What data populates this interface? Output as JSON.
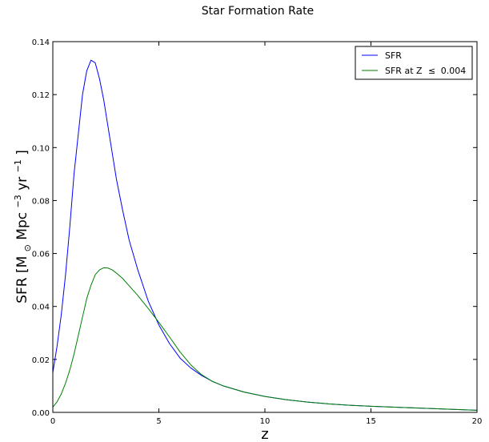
{
  "chart_data": {
    "type": "line",
    "title": "Star Formation Rate",
    "xlabel": "z",
    "ylabel": {
      "prefix": "SFR [M",
      "sun_subscript": "⊙",
      "mid": " Mpc",
      "mid_sup": "−3",
      "mid2": " yr",
      "end_sup": "−1",
      "suffix": " ]"
    },
    "xlim": [
      0,
      20
    ],
    "ylim": [
      0,
      0.14
    ],
    "xticks": [
      0,
      5,
      10,
      15,
      20
    ],
    "xtick_labels": [
      "0",
      "5",
      "10",
      "15",
      "20"
    ],
    "yticks": [
      0,
      0.02,
      0.04,
      0.06,
      0.08,
      0.1,
      0.12,
      0.14
    ],
    "ytick_labels": [
      "0.00",
      "0.02",
      "0.04",
      "0.06",
      "0.08",
      "0.10",
      "0.12",
      "0.14"
    ],
    "grid": false,
    "legend_position": "top-right",
    "series": [
      {
        "name": "SFR",
        "color": "#0000ff",
        "x": [
          0,
          0.2,
          0.4,
          0.6,
          0.8,
          1.0,
          1.2,
          1.4,
          1.6,
          1.8,
          2.0,
          2.2,
          2.4,
          2.6,
          2.8,
          3.0,
          3.3,
          3.6,
          4.0,
          4.5,
          5.0,
          5.5,
          6.0,
          6.5,
          7.0,
          7.5,
          8.0,
          9.0,
          10.0,
          11.0,
          12.0,
          13.0,
          14.0,
          15.0,
          16.0,
          17.0,
          18.0,
          19.0,
          20.0
        ],
        "y": [
          0.015,
          0.025,
          0.037,
          0.052,
          0.07,
          0.09,
          0.105,
          0.12,
          0.129,
          0.133,
          0.132,
          0.126,
          0.118,
          0.108,
          0.098,
          0.088,
          0.076,
          0.065,
          0.054,
          0.042,
          0.033,
          0.026,
          0.0205,
          0.0168,
          0.014,
          0.0118,
          0.0101,
          0.0077,
          0.006,
          0.0048,
          0.0039,
          0.0032,
          0.0027,
          0.0023,
          0.002,
          0.0017,
          0.0014,
          0.0011,
          0.0008
        ]
      },
      {
        "name": "SFR at Z  ≤ 0.004",
        "legend_text": "SFR at Z",
        "legend_rel": "≤",
        "legend_value": "0.004",
        "color": "#008000",
        "x": [
          0,
          0.2,
          0.4,
          0.6,
          0.8,
          1.0,
          1.2,
          1.4,
          1.6,
          1.8,
          2.0,
          2.2,
          2.4,
          2.6,
          2.8,
          3.0,
          3.3,
          3.6,
          4.0,
          4.5,
          5.0,
          5.5,
          6.0,
          6.5,
          7.0,
          7.5,
          8.0,
          9.0,
          10.0,
          11.0,
          12.0,
          13.0,
          14.0,
          15.0,
          16.0,
          17.0,
          18.0,
          19.0,
          20.0
        ],
        "y": [
          0.002,
          0.004,
          0.007,
          0.011,
          0.016,
          0.022,
          0.029,
          0.036,
          0.043,
          0.048,
          0.052,
          0.0538,
          0.0546,
          0.0545,
          0.0538,
          0.0526,
          0.0505,
          0.0478,
          0.0442,
          0.0392,
          0.034,
          0.0285,
          0.0228,
          0.018,
          0.0143,
          0.0118,
          0.0101,
          0.0077,
          0.006,
          0.0048,
          0.0039,
          0.0032,
          0.0027,
          0.0023,
          0.002,
          0.0017,
          0.0014,
          0.0011,
          0.0008
        ]
      }
    ]
  }
}
